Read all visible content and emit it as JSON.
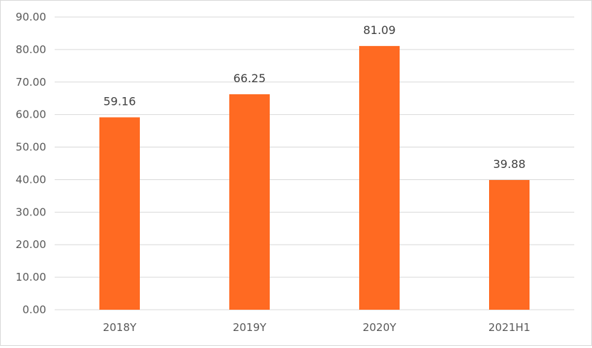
{
  "chart_data": {
    "type": "bar",
    "categories": [
      "2018Y",
      "2019Y",
      "2020Y",
      "2021H1"
    ],
    "values": [
      59.16,
      66.25,
      81.09,
      39.88
    ],
    "value_labels": [
      "59.16",
      "66.25",
      "81.09",
      "39.88"
    ],
    "title": "",
    "xlabel": "",
    "ylabel": "",
    "ylim": [
      0,
      90
    ],
    "yticks": [
      "0.00",
      "10.00",
      "20.00",
      "30.00",
      "40.00",
      "50.00",
      "60.00",
      "70.00",
      "80.00",
      "90.00"
    ],
    "grid": true,
    "legend": "none",
    "bar_color": "#FF6A22",
    "grid_color": "#D9D9D9",
    "text_color": "#595959"
  }
}
